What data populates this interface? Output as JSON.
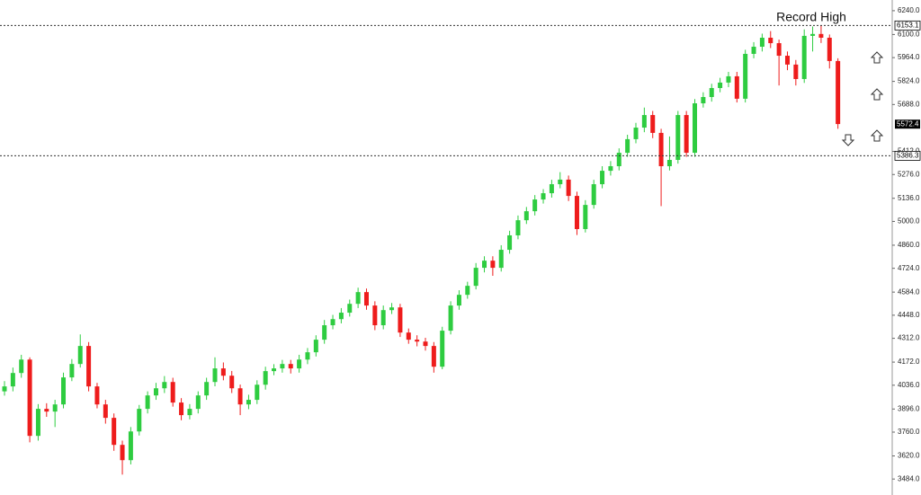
{
  "chart_data": {
    "type": "candlestick",
    "annotation": "Record High",
    "up_color": "#2ecc40",
    "down_color": "#ee1c1c",
    "ylim": [
      3390,
      6303
    ],
    "yticks": [
      {
        "value": 6240,
        "label": "6240.0"
      },
      {
        "value": 6100,
        "label": "6100.0"
      },
      {
        "value": 5964,
        "label": "5964.0"
      },
      {
        "value": 5824,
        "label": "5824.0"
      },
      {
        "value": 5688,
        "label": "5688.0"
      },
      {
        "value": 5412,
        "label": "5412.0"
      },
      {
        "value": 5276,
        "label": "5276.0"
      },
      {
        "value": 5136,
        "label": "5136.0"
      },
      {
        "value": 5000,
        "label": "5000.0"
      },
      {
        "value": 4860,
        "label": "4860.0"
      },
      {
        "value": 4724,
        "label": "4724.0"
      },
      {
        "value": 4584,
        "label": "4584.0"
      },
      {
        "value": 4448,
        "label": "4448.0"
      },
      {
        "value": 4312,
        "label": "4312.0"
      },
      {
        "value": 4172,
        "label": "4172.0"
      },
      {
        "value": 4036,
        "label": "4036.0"
      },
      {
        "value": 3896,
        "label": "3896.0"
      },
      {
        "value": 3760,
        "label": "3760.0"
      },
      {
        "value": 3620,
        "label": "3620.0"
      },
      {
        "value": 3484,
        "label": "3484.0"
      }
    ],
    "levels": [
      6153.1,
      5386.3
    ],
    "last_price": 5572.4,
    "open": [
      4000,
      4029,
      4108,
      4187,
      3738,
      3897,
      3881,
      3923,
      4082,
      4161,
      4267,
      4029,
      3923,
      3844,
      3685,
      3595,
      3764,
      3897,
      3976,
      4018,
      4055,
      3934,
      3860,
      3897,
      3976,
      4055,
      4135,
      4092,
      4018,
      3923,
      3950,
      4039,
      4119,
      4135,
      4161,
      4135,
      4187,
      4230,
      4304,
      4389,
      4425,
      4463,
      4515,
      4584,
      4505,
      4389,
      4478,
      4494,
      4346,
      4304,
      4293,
      4267,
      4145,
      4357,
      4505,
      4568,
      4621,
      4727,
      4769,
      4727,
      4833,
      4918,
      5007,
      5060,
      5129,
      5166,
      5219,
      5246,
      5150,
      4955,
      5097,
      5219,
      5298,
      5325,
      5404,
      5484,
      5552,
      5626,
      5521,
      5325,
      5362,
      5626,
      5404,
      5695,
      5732,
      5785,
      5817,
      5854,
      5722,
      5986,
      6028,
      6081,
      6049,
      5975,
      5923,
      5838,
      6092,
      6103,
      6081,
      5944
    ],
    "high": [
      4060,
      4140,
      4215,
      4200,
      3925,
      3930,
      3950,
      4110,
      4190,
      4335,
      4290,
      4050,
      3950,
      3870,
      3710,
      3790,
      3920,
      4000,
      4050,
      4090,
      4080,
      3960,
      3925,
      4000,
      4080,
      4200,
      4170,
      4120,
      4040,
      3980,
      4065,
      4145,
      4160,
      4185,
      4185,
      4215,
      4255,
      4330,
      4420,
      4450,
      4490,
      4540,
      4610,
      4605,
      4530,
      4505,
      4520,
      4515,
      4370,
      4330,
      4315,
      4290,
      4380,
      4530,
      4595,
      4645,
      4755,
      4795,
      4795,
      4860,
      4945,
      5035,
      5085,
      5155,
      5190,
      5245,
      5290,
      5270,
      5175,
      5125,
      5245,
      5325,
      5355,
      5430,
      5510,
      5580,
      5670,
      5650,
      5545,
      5500,
      5650,
      5650,
      5720,
      5760,
      5810,
      5845,
      5880,
      5880,
      6010,
      6055,
      6105,
      6120,
      6070,
      6000,
      5950,
      6130,
      6147,
      6153,
      6100,
      5960
    ],
    "low": [
      3975,
      4000,
      4080,
      3700,
      3710,
      3850,
      3790,
      3900,
      4060,
      4140,
      4000,
      3900,
      3810,
      3650,
      3510,
      3570,
      3740,
      3870,
      3950,
      3990,
      3910,
      3830,
      3835,
      3870,
      3950,
      4030,
      4065,
      3990,
      3860,
      3895,
      3925,
      4010,
      4095,
      4110,
      4105,
      4110,
      4160,
      4205,
      4280,
      4365,
      4400,
      4440,
      4490,
      4480,
      4360,
      4365,
      4455,
      4320,
      4280,
      4265,
      4240,
      4110,
      4130,
      4335,
      4480,
      4545,
      4600,
      4700,
      4680,
      4705,
      4810,
      4895,
      4985,
      5035,
      5105,
      5140,
      5195,
      5120,
      4920,
      4935,
      5075,
      5195,
      5270,
      5300,
      5380,
      5460,
      5525,
      5490,
      5090,
      5300,
      5340,
      5380,
      5380,
      5670,
      5705,
      5760,
      5790,
      5700,
      5700,
      5960,
      6000,
      6020,
      5800,
      5890,
      5800,
      5815,
      6000,
      6050,
      5900,
      5545
    ],
    "close": [
      4029,
      4108,
      4187,
      3738,
      3897,
      3881,
      3923,
      4082,
      4161,
      4267,
      4029,
      3923,
      3844,
      3685,
      3595,
      3764,
      3897,
      3976,
      4018,
      4055,
      3934,
      3860,
      3897,
      3976,
      4055,
      4135,
      4092,
      4018,
      3923,
      3950,
      4039,
      4119,
      4135,
      4161,
      4135,
      4187,
      4230,
      4304,
      4389,
      4425,
      4463,
      4515,
      4584,
      4505,
      4389,
      4478,
      4494,
      4346,
      4304,
      4293,
      4267,
      4145,
      4357,
      4505,
      4568,
      4621,
      4727,
      4769,
      4727,
      4833,
      4918,
      5007,
      5060,
      5129,
      5166,
      5219,
      5246,
      5150,
      4955,
      5097,
      5219,
      5298,
      5325,
      5404,
      5484,
      5552,
      5626,
      5521,
      5325,
      5362,
      5626,
      5404,
      5695,
      5732,
      5785,
      5817,
      5854,
      5722,
      5986,
      6028,
      6081,
      6049,
      5975,
      5923,
      5838,
      6092,
      6103,
      6081,
      5944,
      5573
    ]
  }
}
